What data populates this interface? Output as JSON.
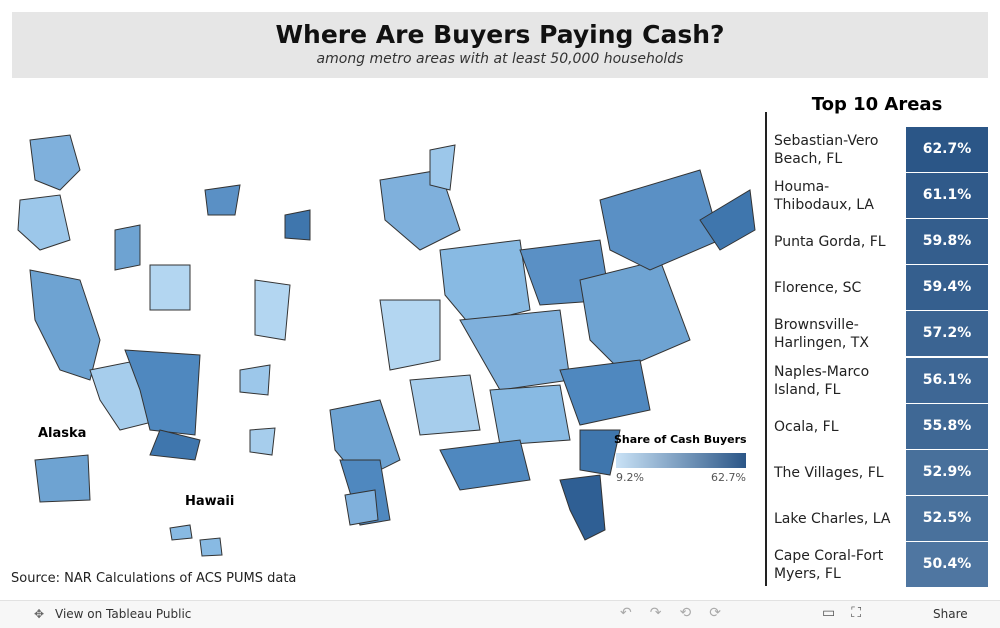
{
  "header": {
    "title": "Where Are Buyers Paying Cash?",
    "subtitle": "among metro areas with at least 50,000 households"
  },
  "map": {
    "labels": [
      "Alaska",
      "Hawaii"
    ],
    "legend": {
      "title": "Share of Cash Buyers",
      "min": {
        "value": 9.2,
        "label": "9.2%"
      },
      "max": {
        "value": 62.7,
        "label": "62.7%"
      },
      "colors": [
        "#c9e2f6",
        "#2b5687"
      ]
    },
    "source": "Source: NAR Calculations of ACS PUMS data"
  },
  "table": {
    "title": "Top 10 Areas",
    "rows": [
      {
        "name": "Sebastian-Vero Beach, FL",
        "value": 62.7,
        "value_label": "62.7%"
      },
      {
        "name": "Houma-Thibodaux, LA",
        "value": 61.1,
        "value_label": "61.1%"
      },
      {
        "name": "Punta Gorda, FL",
        "value": 59.8,
        "value_label": "59.8%"
      },
      {
        "name": "Florence, SC",
        "value": 59.4,
        "value_label": "59.4%"
      },
      {
        "name": "Brownsville-Harlingen, TX",
        "value": 57.2,
        "value_label": "57.2%"
      },
      {
        "name": "Naples-Marco Island, FL",
        "value": 56.1,
        "value_label": "56.1%"
      },
      {
        "name": "Ocala, FL",
        "value": 55.8,
        "value_label": "55.8%"
      },
      {
        "name": "The Villages, FL",
        "value": 52.9,
        "value_label": "52.9%"
      },
      {
        "name": "Lake Charles, LA",
        "value": 52.5,
        "value_label": "52.5%"
      },
      {
        "name": "Cape Coral-Fort Myers, FL",
        "value": 50.4,
        "value_label": "50.4%"
      }
    ]
  },
  "toolbar": {
    "view": "View on Tableau Public",
    "share": "Share"
  }
}
